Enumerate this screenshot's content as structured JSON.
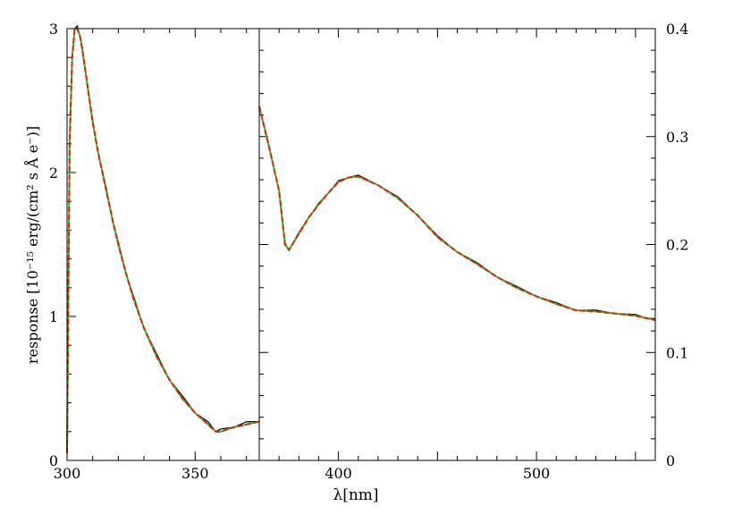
{
  "ylabel": "response [10⁻¹⁵ erg/(cm² s Å e⁻)]",
  "xlabel": "λ[nm]",
  "colors": {
    "observed": "#000000",
    "model_green": "#22cc22",
    "model_red": "#dd2211",
    "frame": "#000000"
  },
  "chart_data": [
    {
      "type": "line",
      "panel": "left",
      "xlim": [
        300,
        375
      ],
      "ylim": [
        0,
        3
      ],
      "xticks": [
        "300",
        "350"
      ],
      "yticks": [
        "0",
        "1",
        "2",
        "3"
      ],
      "x": [
        300,
        300.5,
        301,
        302,
        303,
        304,
        305,
        306,
        308,
        310,
        312,
        315,
        318,
        320,
        323,
        326,
        330,
        335,
        340,
        345,
        350,
        355,
        358,
        360,
        365,
        370,
        375
      ],
      "series": [
        {
          "values": [
            0.05,
            1.1,
            2.2,
            2.8,
            3.0,
            3.0,
            2.95,
            2.85,
            2.6,
            2.35,
            2.15,
            1.9,
            1.65,
            1.5,
            1.3,
            1.12,
            0.92,
            0.72,
            0.56,
            0.43,
            0.33,
            0.25,
            0.2,
            0.2,
            0.23,
            0.25,
            0.27
          ]
        }
      ]
    },
    {
      "type": "line",
      "panel": "right",
      "xlim": [
        360,
        560
      ],
      "ylim": [
        0,
        0.4
      ],
      "xticks": [
        "400",
        "500"
      ],
      "yticks": [
        "0",
        "0.1",
        "0.2",
        "0.3",
        "0.4"
      ],
      "x": [
        360,
        365,
        370,
        373,
        375,
        380,
        385,
        390,
        395,
        400,
        405,
        410,
        420,
        430,
        440,
        450,
        460,
        470,
        480,
        490,
        500,
        510,
        520,
        530,
        540,
        550,
        555,
        560
      ],
      "series": [
        {
          "values": [
            0.328,
            0.29,
            0.25,
            0.2,
            0.195,
            0.21,
            0.225,
            0.237,
            0.248,
            0.258,
            0.262,
            0.263,
            0.255,
            0.243,
            0.227,
            0.207,
            0.193,
            0.182,
            0.17,
            0.16,
            0.152,
            0.145,
            0.139,
            0.138,
            0.136,
            0.134,
            0.132,
            0.13
          ]
        }
      ]
    }
  ]
}
